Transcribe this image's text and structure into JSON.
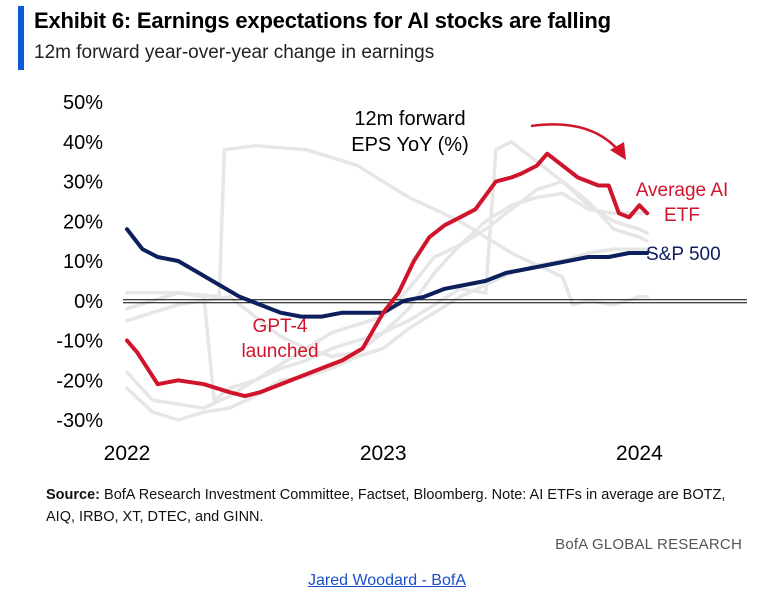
{
  "header": {
    "title": "Exhibit 6: Earnings expectations for AI stocks are falling",
    "subtitle": "12m forward year-over-year change in earnings"
  },
  "footer": {
    "source_label": "Source:",
    "source_text": "BofA Research Investment Committee, Factset, Bloomberg. Note: AI ETFs in average are BOTZ, AIQ, IRBO, XT, DTEC, and GINN.",
    "brand": "BofA GLOBAL RESEARCH",
    "credit": "Jared Woodard - BofA"
  },
  "colors": {
    "ai_etf": "#d0142c",
    "sp500": "#0d1f5c",
    "background_etfs": "#e6e6e6",
    "accent": "#0a5bd3"
  },
  "chart_data": {
    "type": "line",
    "x_ticks": [
      "2022",
      "2023",
      "2024"
    ],
    "y_ticks": [
      "50%",
      "40%",
      "30%",
      "20%",
      "10%",
      "0%",
      "-10%",
      "-20%",
      "-30%"
    ],
    "xlim": [
      2022.0,
      2024.42
    ],
    "ylim": [
      -30,
      50
    ],
    "annotations": {
      "series_title": "12m forward\nEPS YoY (%)",
      "gpt4": "GPT-4\nlaunched",
      "ai_label": "Average AI\nETF",
      "sp_label": "S&P 500"
    },
    "series": [
      {
        "name": "Average AI ETF",
        "color": "#d0142c",
        "x": [
          2022.0,
          2022.04,
          2022.08,
          2022.12,
          2022.2,
          2022.3,
          2022.4,
          2022.46,
          2022.52,
          2022.6,
          2022.68,
          2022.76,
          2022.84,
          2022.92,
          2023.0,
          2023.06,
          2023.12,
          2023.18,
          2023.24,
          2023.3,
          2023.36,
          2023.44,
          2023.5,
          2023.54,
          2023.6,
          2023.64,
          2023.68,
          2023.72,
          2023.76,
          2023.8,
          2023.84,
          2023.88,
          2023.92,
          2023.96,
          2024.0,
          2024.03
        ],
        "y": [
          -10,
          -13,
          -17,
          -21,
          -20,
          -21,
          -23,
          -24,
          -23,
          -21,
          -19,
          -17,
          -15,
          -12,
          -3,
          2,
          10,
          16,
          19,
          21,
          23,
          30,
          31,
          32,
          34,
          37,
          35,
          33,
          31,
          30,
          29,
          29,
          22,
          21,
          24,
          22
        ]
      },
      {
        "name": "S&P 500",
        "color": "#0d1f5c",
        "x": [
          2022.0,
          2022.06,
          2022.12,
          2022.2,
          2022.28,
          2022.36,
          2022.44,
          2022.52,
          2022.6,
          2022.68,
          2022.76,
          2022.84,
          2022.92,
          2023.0,
          2023.08,
          2023.16,
          2023.24,
          2023.32,
          2023.4,
          2023.48,
          2023.56,
          2023.64,
          2023.72,
          2023.8,
          2023.88,
          2023.96,
          2024.03
        ],
        "y": [
          18,
          13,
          11,
          10,
          7,
          4,
          1,
          -1,
          -3,
          -4,
          -4,
          -3,
          -3,
          -3,
          0,
          1,
          3,
          4,
          5,
          7,
          8,
          9,
          10,
          11,
          11,
          12,
          12
        ]
      },
      {
        "color": "#e6e6e6",
        "x": [
          2022.0,
          2022.1,
          2022.2,
          2022.3,
          2022.4,
          2022.5,
          2022.6,
          2022.7,
          2022.8,
          2022.9,
          2023.0,
          2023.1,
          2023.2,
          2023.3,
          2023.4,
          2023.5,
          2023.6,
          2023.7,
          2023.8,
          2023.9,
          2024.0,
          2024.03
        ],
        "y": [
          -18,
          -25,
          -26,
          -27,
          -24,
          -20,
          -16,
          -12,
          -8,
          -6,
          -4,
          3,
          11,
          14,
          18,
          23,
          28,
          30,
          25,
          18,
          16,
          15
        ]
      },
      {
        "color": "#e6e6e6",
        "x": [
          2022.0,
          2022.1,
          2022.2,
          2022.3,
          2022.4,
          2022.5,
          2022.6,
          2022.7,
          2022.8,
          2022.9,
          2023.0,
          2023.1,
          2023.2,
          2023.3,
          2023.4,
          2023.5,
          2023.6,
          2023.7,
          2023.8,
          2023.9,
          2024.0,
          2024.03
        ],
        "y": [
          -5,
          -3,
          -1,
          0,
          1,
          -4,
          -9,
          -12,
          -14,
          -13,
          -8,
          -2,
          7,
          14,
          20,
          24,
          26,
          27,
          23,
          22,
          22,
          22
        ]
      },
      {
        "color": "#e6e6e6",
        "x": [
          2022.0,
          2022.1,
          2022.2,
          2022.3,
          2022.4,
          2022.5,
          2022.6,
          2022.7,
          2022.8,
          2022.9,
          2023.0,
          2023.1,
          2023.2,
          2023.3,
          2023.4,
          2023.5,
          2023.6,
          2023.7,
          2023.8,
          2023.9,
          2024.0,
          2024.03
        ],
        "y": [
          -22,
          -28,
          -30,
          -28,
          -27,
          -24,
          -20,
          -19,
          -17,
          -14,
          -12,
          -7,
          -3,
          1,
          4,
          7,
          9,
          10,
          12,
          13,
          13,
          13
        ]
      },
      {
        "color": "#e6e6e6",
        "x": [
          2022.0,
          2022.1,
          2022.2,
          2022.3,
          2022.34,
          2022.4,
          2022.5,
          2022.6,
          2022.7,
          2022.8,
          2022.9,
          2023.0,
          2023.1,
          2023.2,
          2023.3,
          2023.4,
          2023.44,
          2023.5,
          2023.6,
          2023.7,
          2023.8,
          2023.9,
          2024.0,
          2024.03
        ],
        "y": [
          -2,
          0,
          2,
          1,
          -25,
          -22,
          -20,
          -17,
          -15,
          -12,
          -10,
          -8,
          -5,
          -1,
          3,
          2,
          38,
          40,
          35,
          30,
          24,
          20,
          18,
          17
        ]
      },
      {
        "color": "#e6e6e6",
        "x": [
          2022.0,
          2022.2,
          2022.36,
          2022.38,
          2022.5,
          2022.7,
          2022.9,
          2023.1,
          2023.3,
          2023.5,
          2023.7,
          2023.74,
          2023.8,
          2023.9,
          2024.0,
          2024.03
        ],
        "y": [
          2,
          2,
          1,
          38,
          39,
          38,
          34,
          26,
          20,
          12,
          6,
          -1,
          0,
          -1,
          1,
          1
        ]
      }
    ]
  }
}
